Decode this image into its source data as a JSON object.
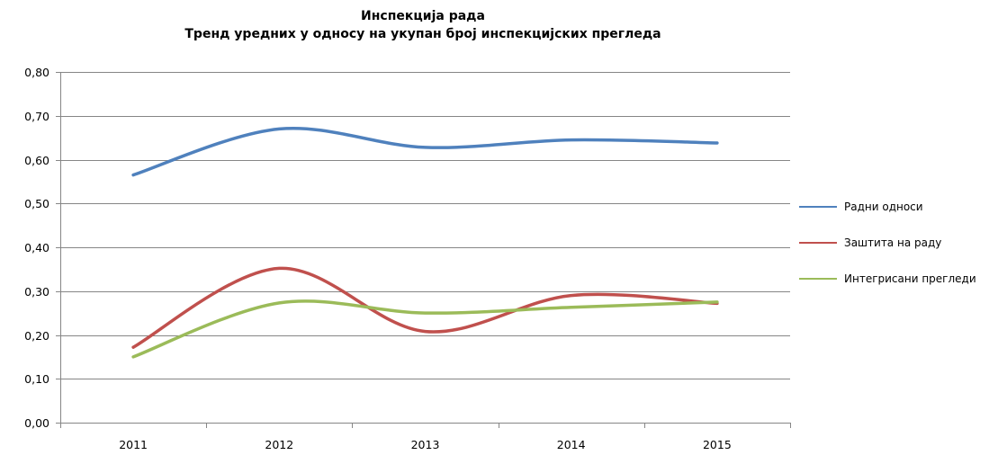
{
  "chart_data": {
    "type": "line",
    "title": "Инспекција рада",
    "subtitle": "Тренд уредних у односу на укупан број  инспекцијских прегледа",
    "xlabel": "",
    "ylabel": "",
    "categories": [
      "2011",
      "2012",
      "2013",
      "2014",
      "2015"
    ],
    "ylim": [
      0,
      0.8
    ],
    "yticks": [
      0,
      0.1,
      0.2,
      0.3,
      0.4,
      0.5,
      0.6,
      0.7,
      0.8
    ],
    "ytick_labels": [
      "0,00",
      "0,10",
      "0,20",
      "0,30",
      "0,40",
      "0,50",
      "0,60",
      "0,70",
      "0,80"
    ],
    "grid": true,
    "smooth": true,
    "legend": "right",
    "series": [
      {
        "name": "Радни односи",
        "color": "#4F81BD",
        "values": [
          0.565,
          0.67,
          0.628,
          0.645,
          0.638
        ]
      },
      {
        "name": "Заштита на раду",
        "color": "#C0504D",
        "values": [
          0.172,
          0.352,
          0.208,
          0.29,
          0.272
        ]
      },
      {
        "name": "Интегрисани прегледи",
        "color": "#9BBB59",
        "values": [
          0.15,
          0.273,
          0.25,
          0.263,
          0.275
        ]
      }
    ]
  }
}
